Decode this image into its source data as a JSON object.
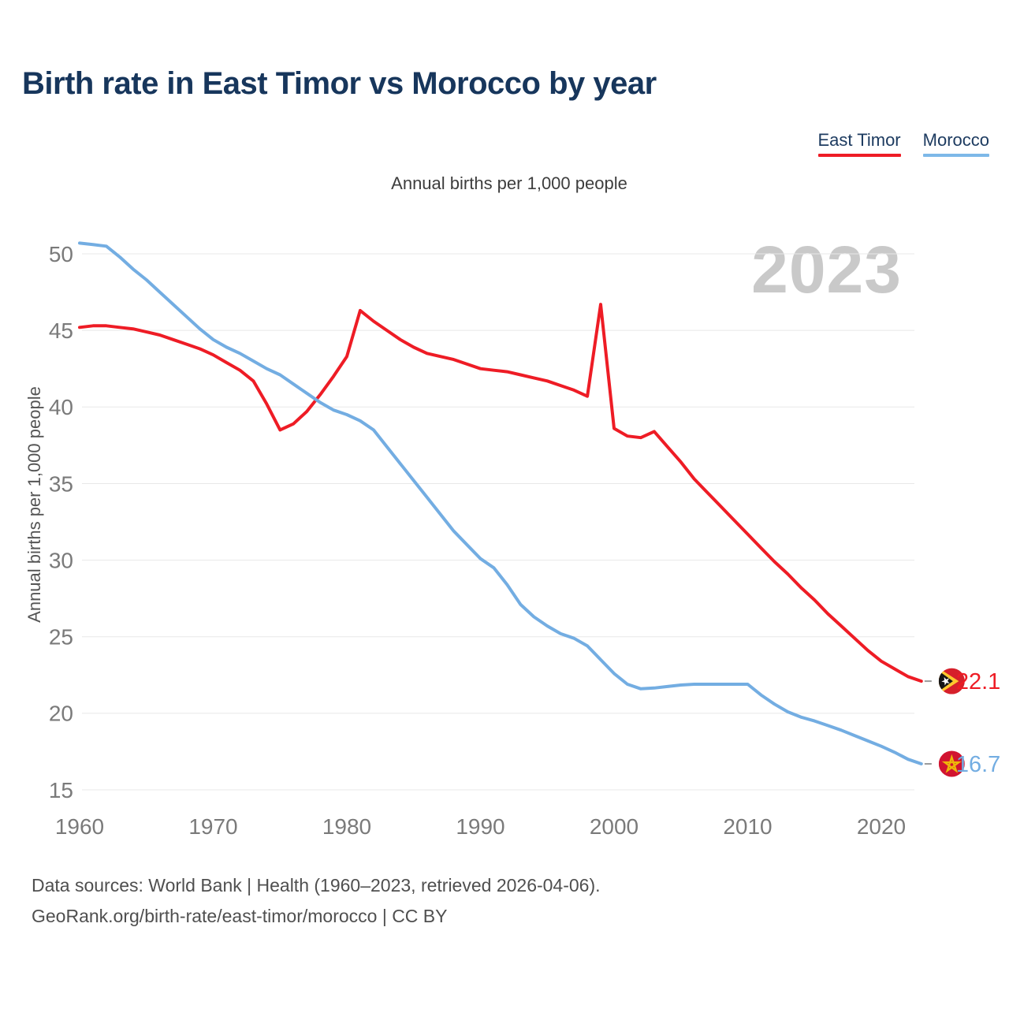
{
  "header": {
    "title": "Birth rate in East Timor vs Morocco by year",
    "subtitle": "Annual births per 1,000 people"
  },
  "legend": [
    {
      "label": "East Timor",
      "color": "#ee1c25"
    },
    {
      "label": "Morocco",
      "color": "#7db8e8"
    }
  ],
  "watermark": {
    "text": "2023"
  },
  "footer": {
    "line1": "Data sources: World Bank | Health (1960–2023, retrieved 2026-04-06).",
    "line2": "GeoRank.org/birth-rate/east-timor/morocco | CC BY"
  },
  "colors": {
    "east_timor_line": "#ee1c25",
    "morocco_line": "#73ade2",
    "grid": "#e8e8e8",
    "tick_text": "#7a7a7a",
    "title_text": "#17365c",
    "watermark": "#c9c9c9",
    "leader_dash": "#9a9a9a"
  },
  "chart_data": {
    "type": "line",
    "title": "Birth rate in East Timor vs Morocco by year",
    "subtitle": "Annual births per 1,000 people",
    "ylabel": "Annual births per 1,000 people",
    "xlabel": "",
    "grid": "horizontal",
    "legend_position": "top-right",
    "ylim": [
      15,
      50
    ],
    "yticks": [
      15,
      20,
      25,
      30,
      35,
      40,
      45,
      50
    ],
    "xticks": [
      1960,
      1970,
      1980,
      1990,
      2000,
      2010,
      2020
    ],
    "x": [
      1960,
      1961,
      1962,
      1963,
      1964,
      1965,
      1966,
      1967,
      1968,
      1969,
      1970,
      1971,
      1972,
      1973,
      1974,
      1975,
      1976,
      1977,
      1978,
      1979,
      1980,
      1981,
      1982,
      1983,
      1984,
      1985,
      1986,
      1987,
      1988,
      1989,
      1990,
      1991,
      1992,
      1993,
      1994,
      1995,
      1996,
      1997,
      1998,
      1999,
      2000,
      2001,
      2002,
      2003,
      2004,
      2005,
      2006,
      2007,
      2008,
      2009,
      2010,
      2011,
      2012,
      2013,
      2014,
      2015,
      2016,
      2017,
      2018,
      2019,
      2020,
      2021,
      2022,
      2023
    ],
    "series": [
      {
        "name": "East Timor",
        "color": "#ee1c25",
        "end_label": "22.1",
        "end_value": 22.1,
        "flag": "east-timor",
        "values": [
          45.2,
          45.3,
          45.3,
          45.2,
          45.1,
          44.9,
          44.7,
          44.4,
          44.1,
          43.8,
          43.4,
          42.9,
          42.4,
          41.7,
          40.2,
          38.5,
          38.9,
          39.7,
          40.8,
          42.0,
          43.3,
          46.3,
          45.6,
          45.0,
          44.4,
          43.9,
          43.5,
          43.3,
          43.1,
          42.8,
          42.5,
          42.4,
          42.3,
          42.1,
          41.9,
          41.7,
          41.4,
          41.1,
          40.7,
          46.7,
          38.6,
          38.1,
          38.0,
          38.4,
          37.4,
          36.4,
          35.3,
          34.4,
          33.5,
          32.6,
          31.7,
          30.8,
          29.9,
          29.1,
          28.2,
          27.4,
          26.5,
          25.7,
          24.9,
          24.1,
          23.4,
          22.9,
          22.4,
          22.1
        ]
      },
      {
        "name": "Morocco",
        "color": "#73ade2",
        "end_label": "16.7",
        "end_value": 16.7,
        "flag": "morocco",
        "values": [
          50.7,
          50.6,
          50.5,
          49.8,
          49.0,
          48.3,
          47.5,
          46.7,
          45.9,
          45.1,
          44.4,
          43.9,
          43.5,
          43.0,
          42.5,
          42.1,
          41.5,
          40.9,
          40.3,
          39.8,
          39.5,
          39.1,
          38.5,
          37.4,
          36.3,
          35.2,
          34.1,
          33.0,
          31.9,
          31.0,
          30.1,
          29.5,
          28.4,
          27.1,
          26.3,
          25.7,
          25.2,
          24.9,
          24.4,
          23.5,
          22.6,
          21.9,
          21.6,
          21.65,
          21.75,
          21.85,
          21.9,
          21.9,
          21.9,
          21.9,
          21.9,
          21.2,
          20.6,
          20.1,
          19.75,
          19.5,
          19.2,
          18.9,
          18.55,
          18.2,
          17.85,
          17.45,
          17.0,
          16.7
        ]
      }
    ]
  }
}
